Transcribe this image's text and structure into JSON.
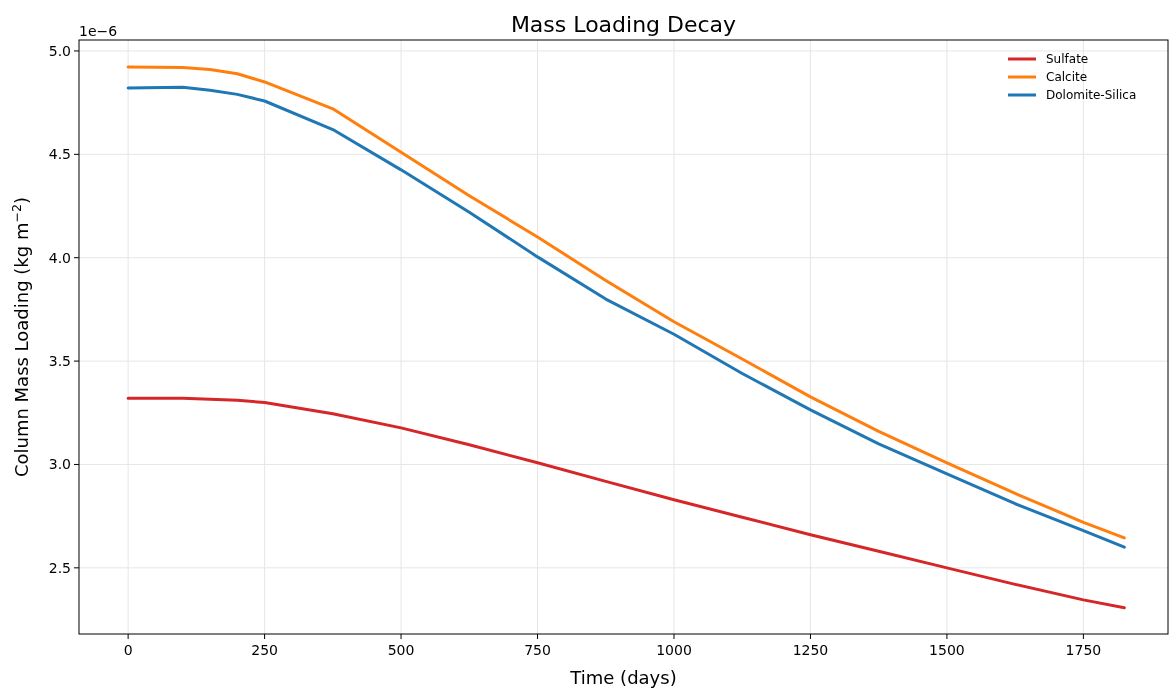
{
  "chart_data": {
    "type": "line",
    "title": "Mass Loading Decay",
    "xlabel": "Time (days)",
    "ylabel": "Column Mass Loading (kg m$^{−2}$)",
    "annotations": [
      "1e−6"
    ],
    "x": [
      0,
      100,
      150,
      200,
      250,
      375,
      500,
      625,
      750,
      875,
      1000,
      1125,
      1250,
      1375,
      1500,
      1625,
      1750,
      1825
    ],
    "series": [
      {
        "name": "Sulfate",
        "color": "#d62728",
        "values": [
          3.32,
          3.32,
          3.315,
          3.31,
          3.3,
          3.245,
          3.177,
          3.095,
          3.008,
          2.918,
          2.829,
          2.745,
          2.66,
          2.58,
          2.5,
          2.42,
          2.345,
          2.307
        ]
      },
      {
        "name": "Calcite",
        "color": "#ff7f0e",
        "values": [
          4.923,
          4.92,
          4.91,
          4.89,
          4.85,
          4.72,
          4.51,
          4.3,
          4.1,
          3.89,
          3.69,
          3.51,
          3.327,
          3.16,
          3.008,
          2.86,
          2.72,
          2.645
        ]
      },
      {
        "name": "Dolomite-Silica",
        "color": "#1f77b4",
        "values": [
          4.821,
          4.825,
          4.81,
          4.79,
          4.758,
          4.62,
          4.425,
          4.22,
          4.004,
          3.8,
          3.63,
          3.44,
          3.264,
          3.1,
          2.955,
          2.81,
          2.68,
          2.6
        ]
      }
    ],
    "xlim": [
      -90,
      1905
    ],
    "ylim": [
      2.18,
      5.053
    ],
    "xticks": [
      0,
      250,
      500,
      750,
      1000,
      1250,
      1500,
      1750
    ],
    "yticks": [
      {
        "value": 2.5,
        "label": "2.5"
      },
      {
        "value": 3,
        "label": "3.0"
      },
      {
        "value": 3.5,
        "label": "3.5"
      },
      {
        "value": 4,
        "label": "4.0"
      },
      {
        "value": 4.5,
        "label": "4.5"
      },
      {
        "value": 5,
        "label": "5.0"
      }
    ],
    "grid": true,
    "legend": "top right",
    "line_style": "solid",
    "marker": "none"
  }
}
